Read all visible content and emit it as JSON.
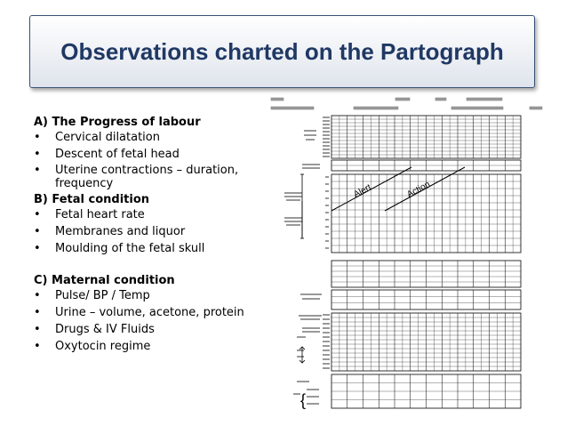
{
  "slide": {
    "title": "Observations charted on the Partograph"
  },
  "sections": [
    {
      "heading": "A) The Progress of labour",
      "items": [
        "Cervical dilatation",
        "Descent of fetal head",
        "Uterine contractions – duration, frequency"
      ]
    },
    {
      "heading": "B) Fetal condition",
      "items": [
        "Fetal heart rate",
        "Membranes and liquor",
        "Moulding of the fetal skull"
      ]
    },
    {
      "heading": "C) Maternal condition",
      "items": [
        "Pulse/ BP / Temp",
        "Urine – volume, acetone, protein",
        "Drugs & IV Fluids",
        "Oxytocin regime"
      ]
    }
  ],
  "bullet_char": "•",
  "partograph": {
    "alert_label": "Alert",
    "action_label": "Action",
    "line_color": "#000000",
    "title_color": "#1f3864"
  }
}
